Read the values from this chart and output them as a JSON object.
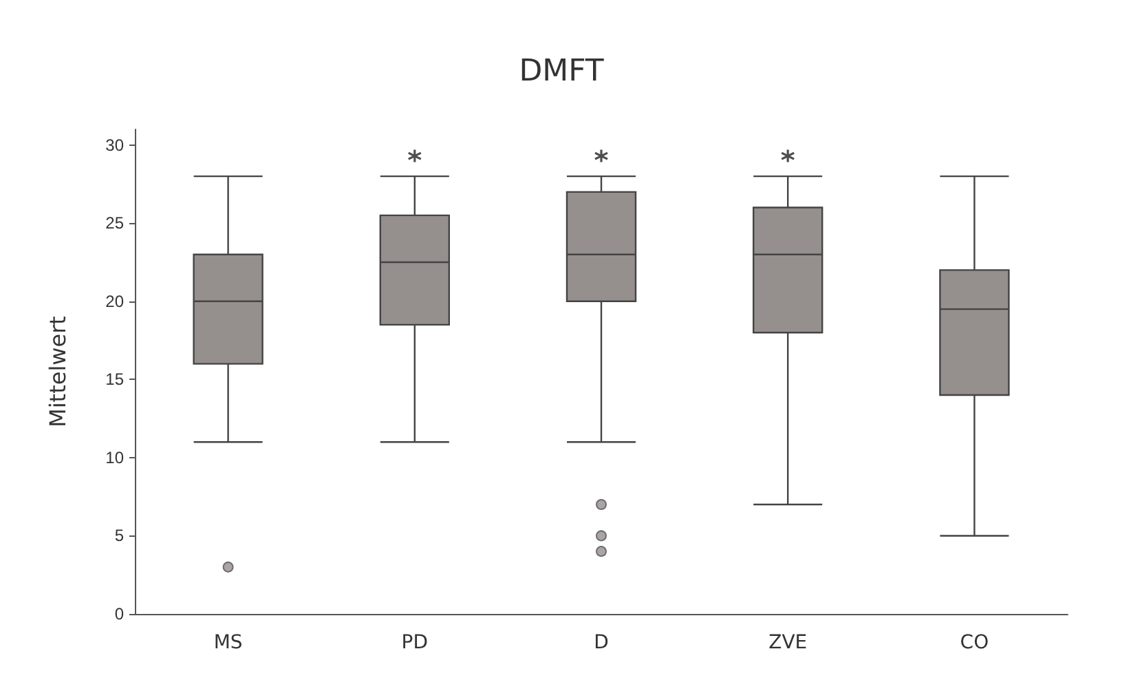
{
  "chart_data": {
    "type": "box",
    "title": "DMFT",
    "ylabel": "Mittelwert",
    "categories": [
      "MS",
      "PD",
      "D",
      "ZVE",
      "CO"
    ],
    "series": [
      {
        "color": "#958f8d",
        "boxes": [
          {
            "low": 11,
            "q1": 16,
            "median": 20,
            "q3": 23,
            "high": 28,
            "outliers": [
              3
            ]
          },
          {
            "low": 11,
            "q1": 18.5,
            "median": 22.5,
            "q3": 25.5,
            "high": 28
          },
          {
            "low": 11,
            "q1": 20,
            "median": 23,
            "q3": 27,
            "high": 28,
            "outliers": [
              7,
              5,
              4
            ]
          },
          {
            "low": 7,
            "q1": 18,
            "median": 23,
            "q3": 26,
            "high": 28
          },
          {
            "low": 5,
            "q1": 14,
            "median": 19.5,
            "q3": 22,
            "high": 28
          }
        ]
      },
      {
        "type": "scatter",
        "color": "#222222",
        "marker": "cross",
        "x": [
          "PD",
          "D",
          "ZVE"
        ],
        "values": [
          29.3,
          29.3,
          29.3
        ]
      }
    ],
    "ylim": [
      0,
      31
    ],
    "yticks": [
      0,
      5,
      10,
      15,
      20,
      25,
      30
    ],
    "grid": false
  }
}
